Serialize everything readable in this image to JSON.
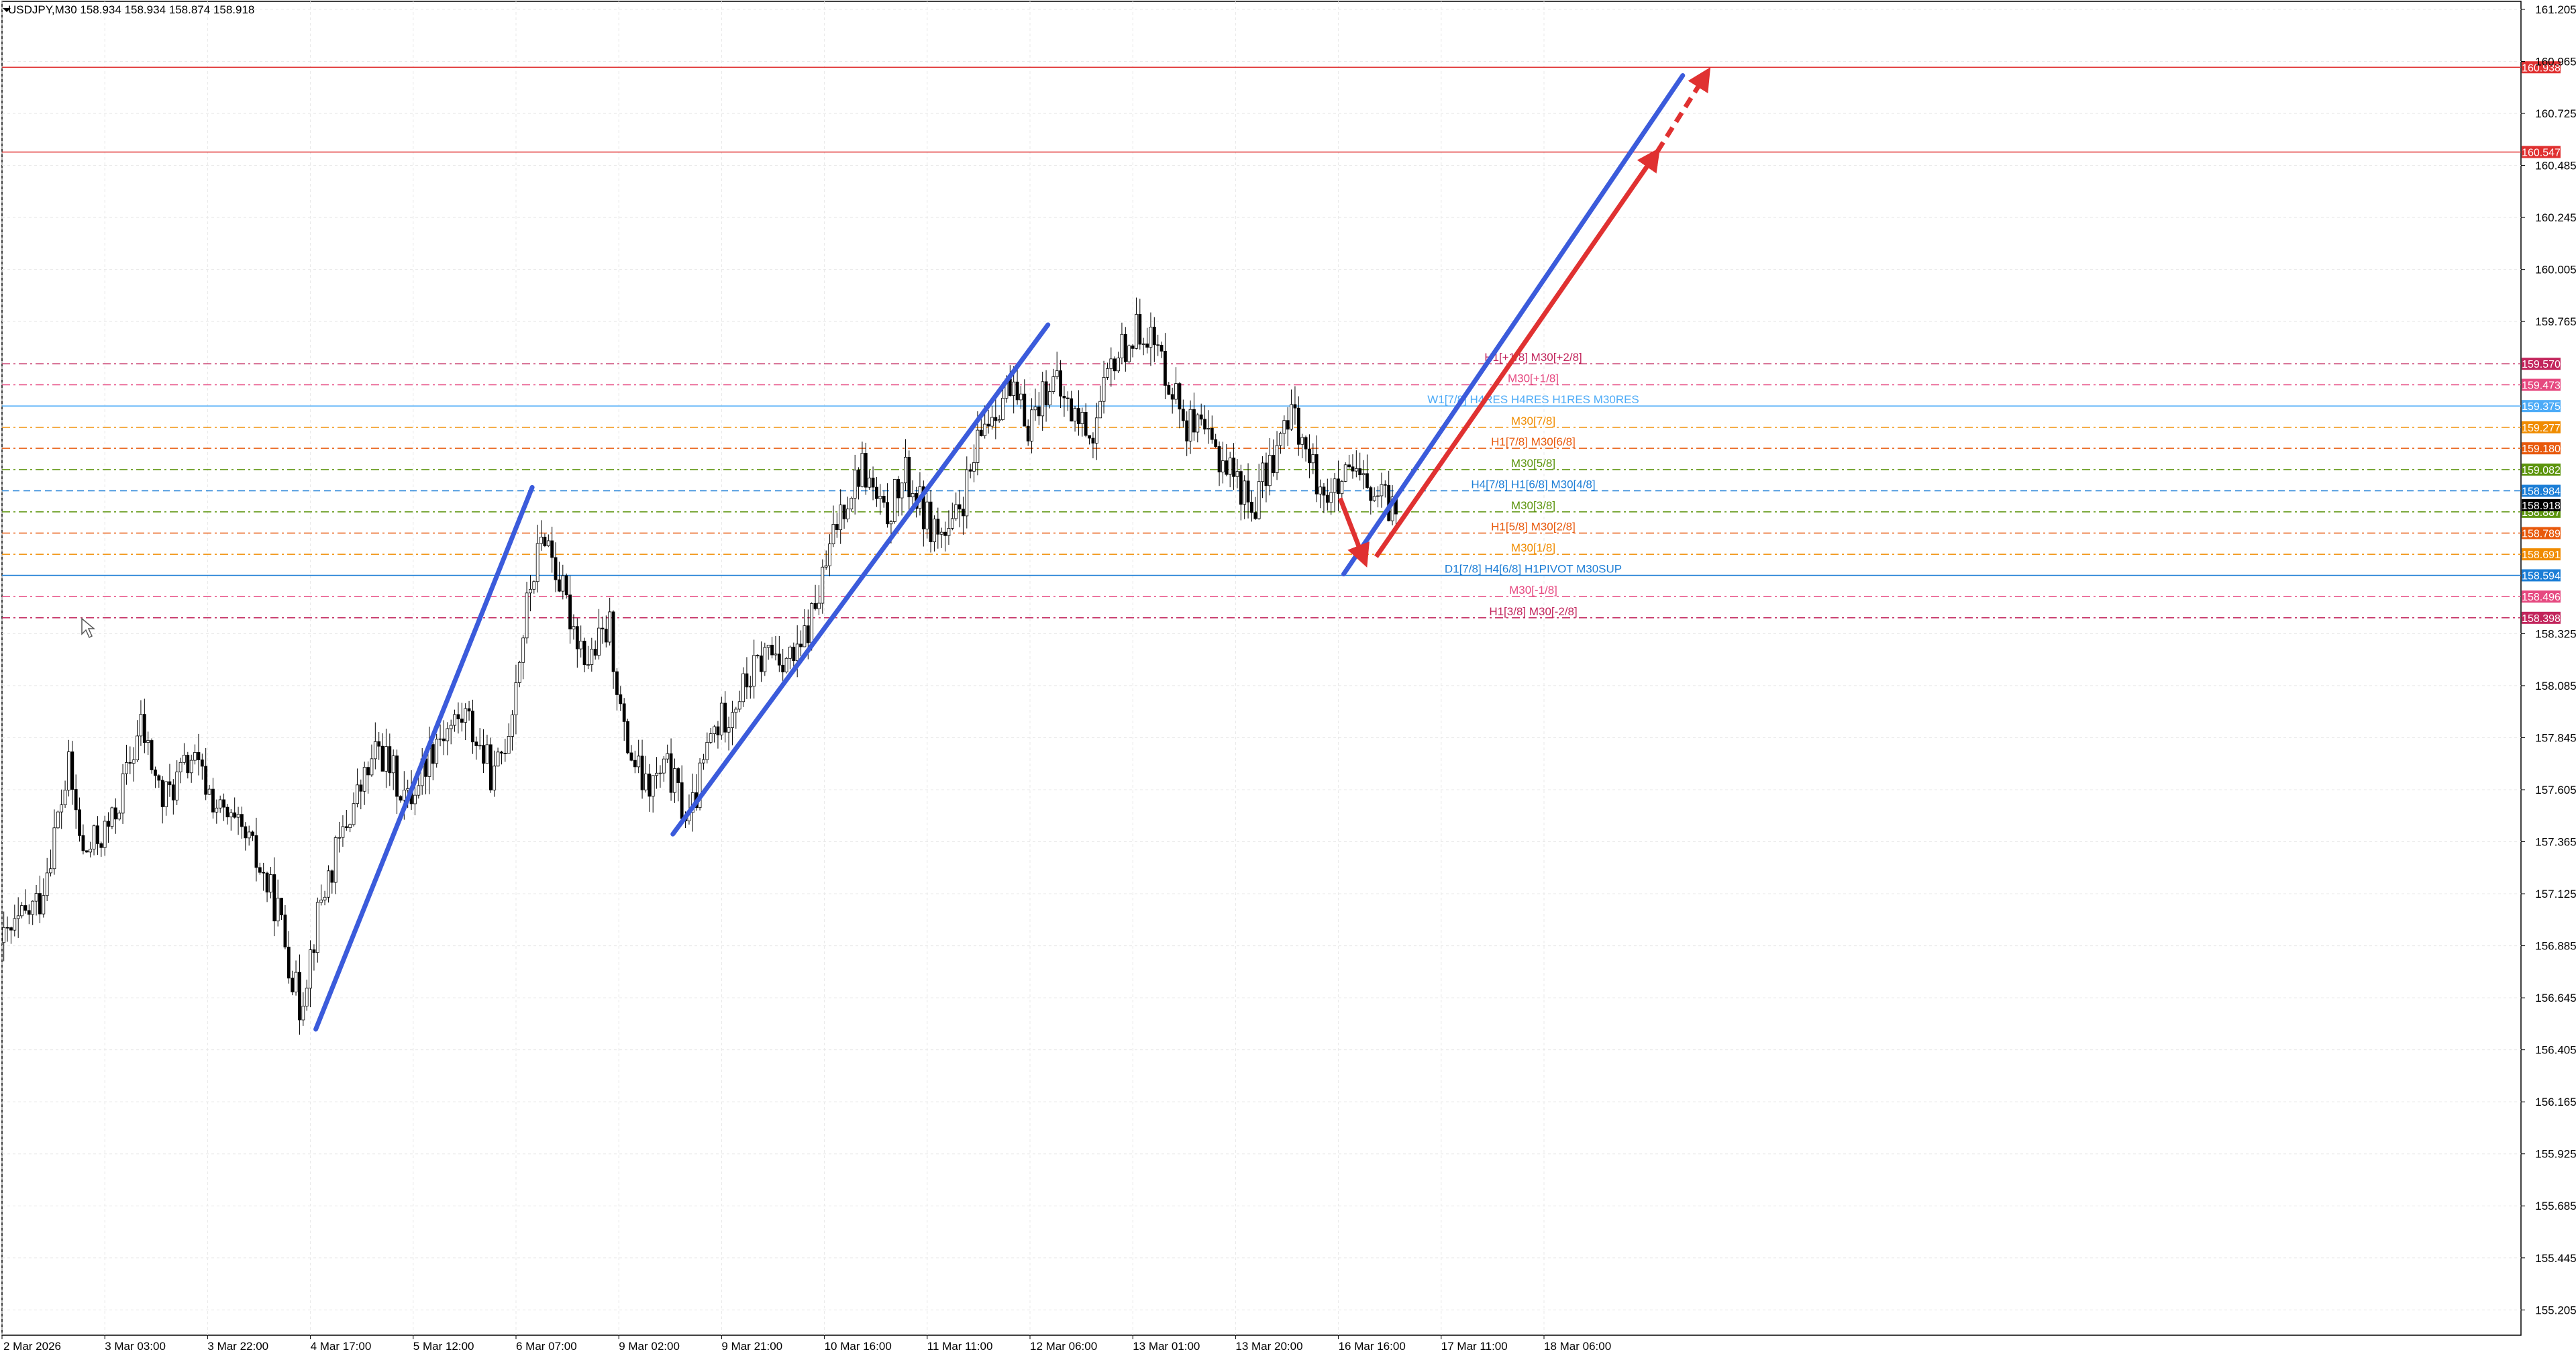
{
  "header": {
    "symbol_info": "USDJPY,M30  158.934 158.934 158.874 158.918"
  },
  "colors": {
    "candle": "#000000",
    "trend_blue": "#3b5bdb",
    "arrow_red": "#e03131",
    "grid": "#e8e8e8"
  },
  "chart_data": {
    "type": "candlestick",
    "symbol": "USDJPY",
    "timeframe": "M30",
    "ylim": [
      155.045,
      161.205
    ],
    "y_ticks": [
      "161.205",
      "160.965",
      "160.725",
      "160.485",
      "160.245",
      "160.005",
      "159.765",
      "158.325",
      "158.085",
      "157.845",
      "157.605",
      "157.365",
      "157.125",
      "156.885",
      "156.645",
      "156.405",
      "156.165",
      "155.925",
      "155.685",
      "155.445",
      "155.205"
    ],
    "x_ticks": [
      "2 Mar 2026",
      "3 Mar 03:00",
      "3 Mar 22:00",
      "4 Mar 17:00",
      "5 Mar 12:00",
      "6 Mar 07:00",
      "9 Mar 02:00",
      "9 Mar 21:00",
      "10 Mar 16:00",
      "11 Mar 11:00",
      "12 Mar 06:00",
      "13 Mar 01:00",
      "13 Mar 20:00",
      "16 Mar 16:00",
      "17 Mar 11:00",
      "18 Mar 06:00"
    ],
    "price_path": [
      [
        0,
        156.9
      ],
      [
        10,
        157.1
      ],
      [
        18,
        157.7
      ],
      [
        22,
        157.3
      ],
      [
        30,
        157.45
      ],
      [
        38,
        157.9
      ],
      [
        44,
        157.55
      ],
      [
        52,
        157.75
      ],
      [
        60,
        157.5
      ],
      [
        68,
        157.35
      ],
      [
        76,
        157.05
      ],
      [
        82,
        156.6
      ],
      [
        88,
        157.1
      ],
      [
        96,
        157.5
      ],
      [
        104,
        157.8
      ],
      [
        112,
        157.55
      ],
      [
        120,
        157.85
      ],
      [
        128,
        157.95
      ],
      [
        136,
        157.65
      ],
      [
        140,
        157.9
      ],
      [
        146,
        158.55
      ],
      [
        150,
        158.8
      ],
      [
        156,
        158.45
      ],
      [
        162,
        158.2
      ],
      [
        168,
        158.35
      ],
      [
        172,
        157.85
      ],
      [
        178,
        157.6
      ],
      [
        184,
        157.7
      ],
      [
        190,
        157.45
      ],
      [
        196,
        157.85
      ],
      [
        204,
        158.05
      ],
      [
        212,
        158.25
      ],
      [
        220,
        158.2
      ],
      [
        226,
        158.5
      ],
      [
        232,
        158.9
      ],
      [
        238,
        159.1
      ],
      [
        244,
        158.85
      ],
      [
        250,
        159.05
      ],
      [
        256,
        158.85
      ],
      [
        262,
        158.75
      ],
      [
        268,
        159.05
      ],
      [
        272,
        159.3
      ],
      [
        278,
        159.45
      ],
      [
        284,
        159.3
      ],
      [
        290,
        159.5
      ],
      [
        296,
        159.35
      ],
      [
        302,
        159.25
      ],
      [
        308,
        159.6
      ],
      [
        316,
        159.75
      ],
      [
        322,
        159.55
      ],
      [
        328,
        159.3
      ],
      [
        334,
        159.2
      ],
      [
        340,
        159.1
      ],
      [
        346,
        158.9
      ],
      [
        352,
        159.15
      ],
      [
        358,
        159.35
      ],
      [
        362,
        159.1
      ],
      [
        368,
        158.95
      ],
      [
        374,
        159.05
      ],
      [
        380,
        158.95
      ],
      [
        386,
        158.9
      ]
    ],
    "levels": [
      {
        "price": 160.938,
        "label": "",
        "tag": "160.938",
        "color": "#e03131",
        "style": "solid"
      },
      {
        "price": 160.547,
        "label": "",
        "tag": "160.547",
        "color": "#e03131",
        "style": "solid"
      },
      {
        "price": 159.57,
        "label": "H1[+1/8] M30[+2/8]",
        "tag": "159.570",
        "color": "#c2255c",
        "style": "dashdot"
      },
      {
        "price": 159.473,
        "label": "M30[+1/8]",
        "tag": "159.473",
        "color": "#e64980",
        "style": "dashdot"
      },
      {
        "price": 159.375,
        "label": "W1[7/8] H4RES H4RES H1RES M30RES",
        "tag": "159.375",
        "color": "#4dabf7",
        "style": "solid"
      },
      {
        "price": 159.277,
        "label": "M30[7/8]",
        "tag": "159.277",
        "color": "#f08c00",
        "style": "dashdot"
      },
      {
        "price": 159.18,
        "label": "H1[7/8] M30[6/8]",
        "tag": "159.180",
        "color": "#e8590c",
        "style": "dashdot"
      },
      {
        "price": 159.082,
        "label": "M30[5/8]",
        "tag": "159.082",
        "color": "#5c940d",
        "style": "dashdot"
      },
      {
        "price": 158.984,
        "label": "H4[7/8] H1[6/8] M30[4/8]",
        "tag": "158.984",
        "color": "#1c7ed6",
        "style": "dashed"
      },
      {
        "price": 158.887,
        "label": "M30[3/8]",
        "tag": "158.887",
        "color": "#5c940d",
        "style": "dashdot"
      },
      {
        "price": 158.789,
        "label": "H1[5/8] M30[2/8]",
        "tag": "158.789",
        "color": "#e8590c",
        "style": "dashdot"
      },
      {
        "price": 158.691,
        "label": "M30[1/8]",
        "tag": "158.691",
        "color": "#f08c00",
        "style": "dashdot"
      },
      {
        "price": 158.594,
        "label": "D1[7/8] H4[6/8] H1PIVOT M30SUP",
        "tag": "158.594",
        "color": "#1c7ed6",
        "style": "solid"
      },
      {
        "price": 158.496,
        "label": "M30[-1/8]",
        "tag": "158.496",
        "color": "#e64980",
        "style": "dashdot"
      },
      {
        "price": 158.398,
        "label": "H1[3/8] M30[-2/8]",
        "tag": "158.398",
        "color": "#c2255c",
        "style": "dashdot"
      }
    ],
    "current_price": {
      "value": 158.918,
      "tag": "158.918"
    },
    "annotations": {
      "blue_trendlines": [
        {
          "from": [
            87,
            156.5
          ],
          "to": [
            147,
            159.0
          ]
        },
        {
          "from": [
            186,
            157.4
          ],
          "to": [
            290,
            159.75
          ]
        },
        {
          "from": [
            372,
            158.6
          ],
          "to": [
            466,
            160.9
          ]
        }
      ],
      "red_arrows": [
        {
          "from": [
            371,
            158.95
          ],
          "to": [
            378,
            158.65
          ],
          "style": "solid"
        },
        {
          "from": [
            381,
            158.68
          ],
          "to": [
            459,
            160.55
          ],
          "style": "solid"
        },
        {
          "from": [
            459,
            160.55
          ],
          "to": [
            473,
            160.92
          ],
          "style": "dashed"
        }
      ]
    }
  }
}
